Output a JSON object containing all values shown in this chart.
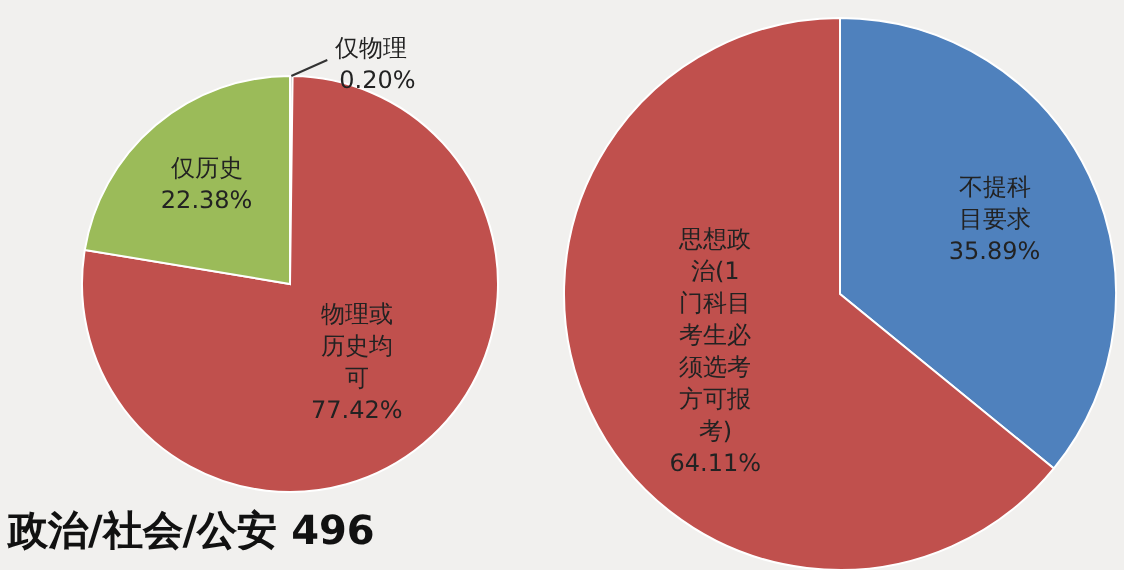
{
  "chart_data": [
    {
      "type": "pie",
      "title": "政治/社会/公安 496",
      "categories": [
        "仅物理",
        "物理或历史均可",
        "仅历史"
      ],
      "values": [
        0.2,
        77.42,
        22.38
      ],
      "colors": [
        "#8c8c8c",
        "#c0504d",
        "#9bbb59"
      ],
      "value_labels": [
        "0.20%",
        "77.42%",
        "22.38%"
      ],
      "legend": false
    },
    {
      "type": "pie",
      "categories": [
        "不提科目要求",
        "思想政治(1门科目考生必须选考方可报考)"
      ],
      "values": [
        35.89,
        64.11
      ],
      "colors": [
        "#4f81bd",
        "#c0504d"
      ],
      "value_labels": [
        "35.89%",
        "64.11%"
      ],
      "legend": false
    }
  ]
}
